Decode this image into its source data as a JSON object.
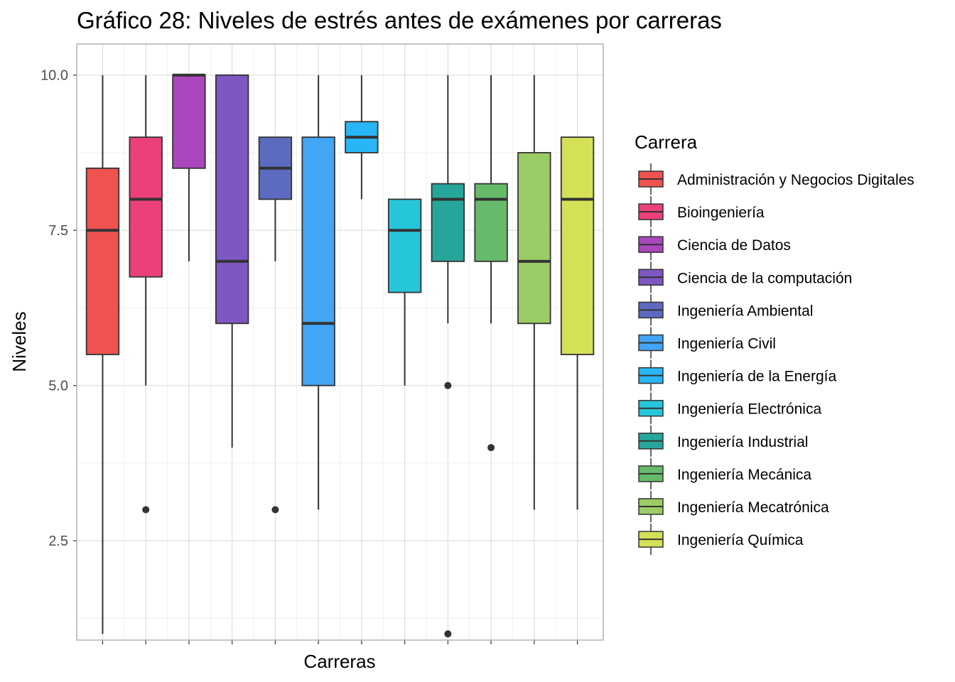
{
  "chart_data": {
    "type": "boxplot",
    "title": "Gráfico 28: Niveles de estrés antes de exámenes por carreras",
    "xlabel": "Carreras",
    "ylabel": "Niveles",
    "ylim": [
      0.9,
      10.5
    ],
    "yticks": [
      2.5,
      5.0,
      7.5,
      10.0
    ],
    "ytick_labels": [
      "2.5",
      "5.0",
      "7.5",
      "10.0"
    ],
    "grid": true,
    "legend": {
      "title": "Carrera",
      "position": "right"
    },
    "series": [
      {
        "name": "Administración y Negocios Digitales",
        "color": "#ef5350",
        "whisker_low": 1,
        "q1": 5.5,
        "median": 7.5,
        "q3": 8.5,
        "whisker_high": 10,
        "outliers": []
      },
      {
        "name": "Bioingeniería",
        "color": "#ec407a",
        "whisker_low": 5,
        "q1": 6.75,
        "median": 8,
        "q3": 9,
        "whisker_high": 10,
        "outliers": [
          3
        ]
      },
      {
        "name": "Ciencia de Datos",
        "color": "#ab47bc",
        "whisker_low": 7,
        "q1": 8.5,
        "median": 10,
        "q3": 10,
        "whisker_high": 10,
        "outliers": []
      },
      {
        "name": "Ciencia de la computación",
        "color": "#7e57c2",
        "whisker_low": 4,
        "q1": 6,
        "median": 7,
        "q3": 10,
        "whisker_high": 10,
        "outliers": []
      },
      {
        "name": "Ingeniería Ambiental",
        "color": "#5c6bc0",
        "whisker_low": 7,
        "q1": 8,
        "median": 8.5,
        "q3": 9,
        "whisker_high": 9,
        "outliers": [
          3
        ]
      },
      {
        "name": "Ingeniería Civil",
        "color": "#42a5f5",
        "whisker_low": 3,
        "q1": 5,
        "median": 6,
        "q3": 9,
        "whisker_high": 10,
        "outliers": []
      },
      {
        "name": "Ingeniería de la Energía",
        "color": "#29b6f6",
        "whisker_low": 8,
        "q1": 8.75,
        "median": 9,
        "q3": 9.25,
        "whisker_high": 10,
        "outliers": []
      },
      {
        "name": "Ingeniería Electrónica",
        "color": "#26c6da",
        "whisker_low": 5,
        "q1": 6.5,
        "median": 7.5,
        "q3": 8,
        "whisker_high": 8,
        "outliers": []
      },
      {
        "name": "Ingeniería Industrial",
        "color": "#26a69a",
        "whisker_low": 6,
        "q1": 7,
        "median": 8,
        "q3": 8.25,
        "whisker_high": 10,
        "outliers": [
          5,
          1
        ]
      },
      {
        "name": "Ingeniería Mecánica",
        "color": "#66bb6a",
        "whisker_low": 6,
        "q1": 7,
        "median": 8,
        "q3": 8.25,
        "whisker_high": 10,
        "outliers": [
          4
        ]
      },
      {
        "name": "Ingeniería Mecatrónica",
        "color": "#9ccc65",
        "whisker_low": 3,
        "q1": 6,
        "median": 7,
        "q3": 8.75,
        "whisker_high": 10,
        "outliers": []
      },
      {
        "name": "Ingeniería Química",
        "color": "#d4e157",
        "whisker_low": 3,
        "q1": 5.5,
        "median": 8,
        "q3": 9,
        "whisker_high": 9,
        "outliers": []
      }
    ]
  }
}
